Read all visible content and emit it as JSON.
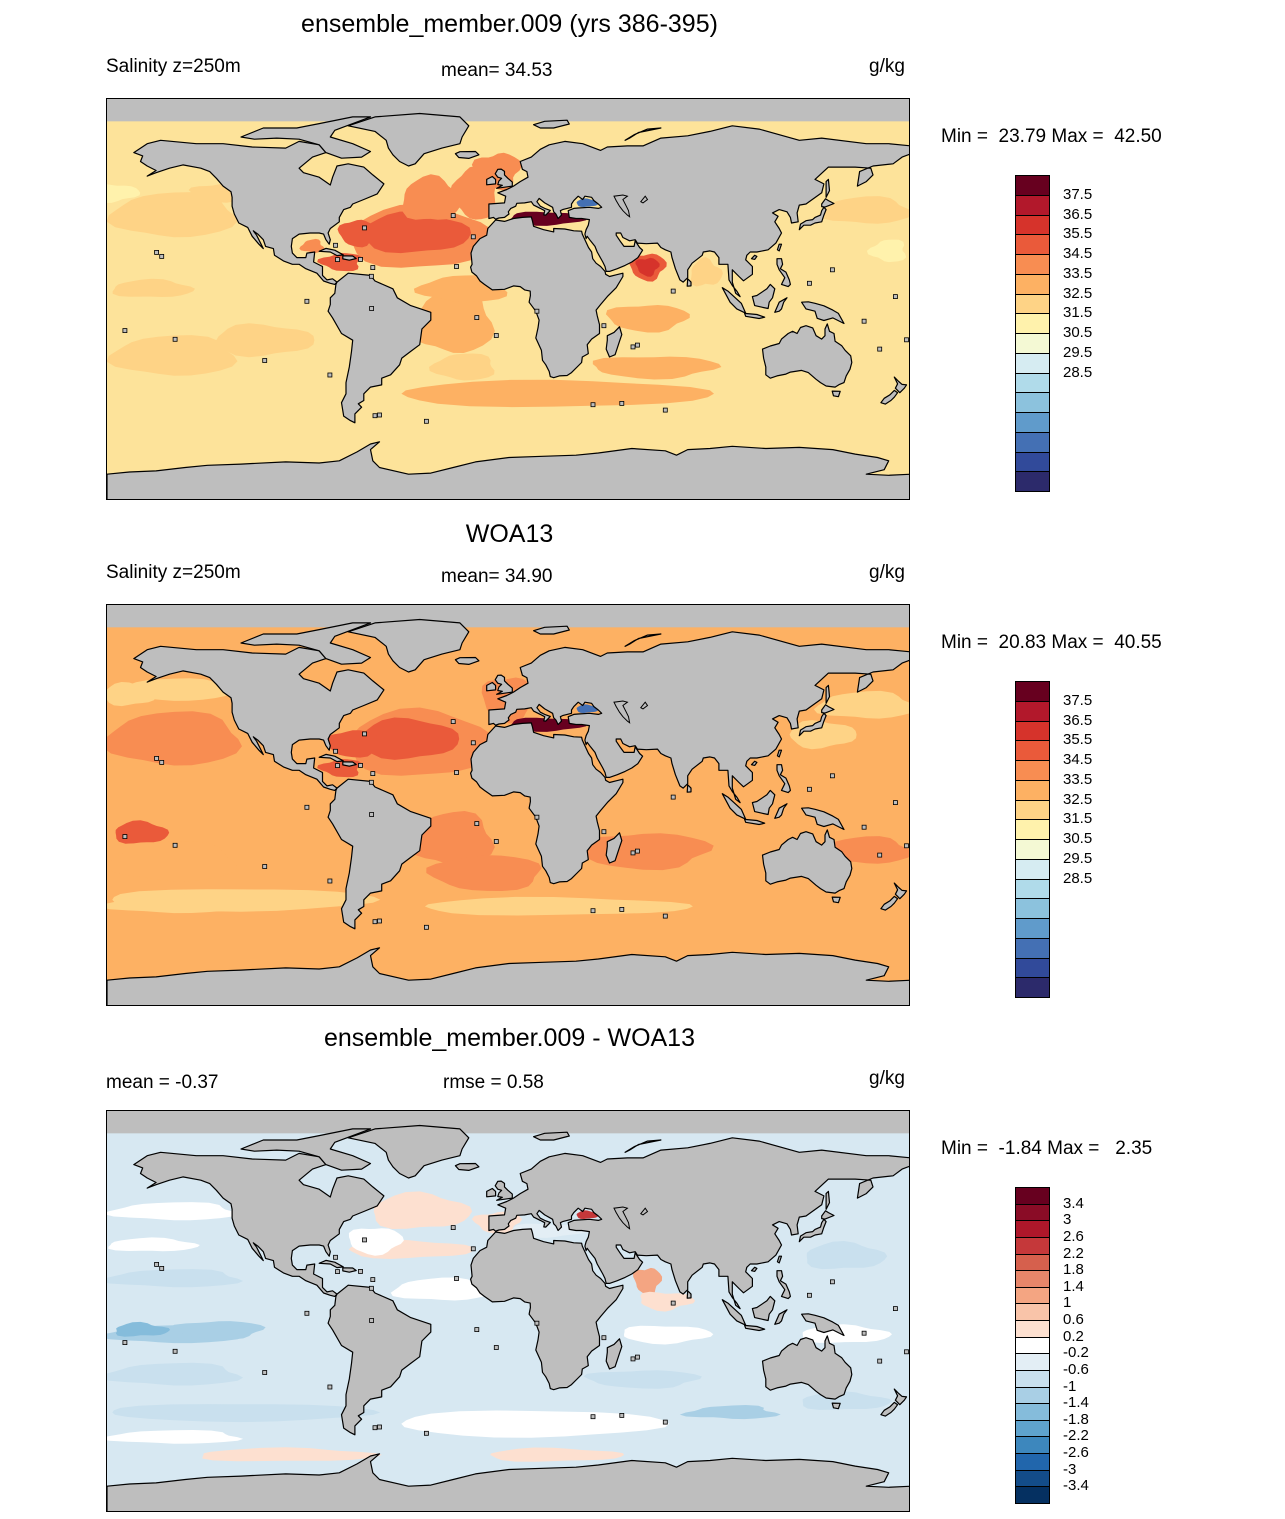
{
  "land_color": "#bebebe",
  "panels": [
    {
      "title": "ensemble_member.009 (yrs 386-395)",
      "left_label": "Salinity z=250m",
      "center_label": "mean=  34.53",
      "units": "g/kg",
      "minmax": "Min =  23.79 Max =  42.50",
      "ocean_base": "#fde39a",
      "levels": [
        "37.5",
        "36.5",
        "35.5",
        "34.5",
        "33.5",
        "32.5",
        "31.5",
        "30.5",
        "29.5",
        "28.5"
      ],
      "colors": [
        "#67001f",
        "#b2182b",
        "#d6332b",
        "#ea5a3a",
        "#f88d52",
        "#fdb163",
        "#fed386",
        "#fff2ac",
        "#f4f9d4",
        "#d6ecf2",
        "#b0dbea",
        "#8cc2dd",
        "#609bcb",
        "#4470b4",
        "#314a9a",
        "#2c2a6b"
      ]
    },
    {
      "title": "WOA13",
      "left_label": "Salinity z=250m",
      "center_label": "mean=  34.90",
      "units": "g/kg",
      "minmax": "Min =  20.83 Max =  40.55",
      "ocean_base": "#fdb163",
      "levels": [
        "37.5",
        "36.5",
        "35.5",
        "34.5",
        "33.5",
        "32.5",
        "31.5",
        "30.5",
        "29.5",
        "28.5"
      ],
      "colors": [
        "#67001f",
        "#b2182b",
        "#d6332b",
        "#ea5a3a",
        "#f88d52",
        "#fdb163",
        "#fed386",
        "#fff2ac",
        "#f4f9d4",
        "#d6ecf2",
        "#b0dbea",
        "#8cc2dd",
        "#609bcb",
        "#4470b4",
        "#314a9a",
        "#2c2a6b"
      ]
    },
    {
      "title": "ensemble_member.009 - WOA13",
      "left_label": "mean =  -0.37",
      "center_label": "rmse =   0.58",
      "units": "g/kg",
      "minmax": "Min =  -1.84 Max =   2.35",
      "ocean_base": "#d7e8f2",
      "levels": [
        "3.4",
        "3",
        "2.6",
        "2.2",
        "1.8",
        "1.4",
        "1",
        "0.6",
        "0.2",
        "-0.2",
        "-0.6",
        "-1",
        "-1.4",
        "-1.8",
        "-2.2",
        "-2.6",
        "-3",
        "-3.4"
      ],
      "colors": [
        "#67001f",
        "#8a0c26",
        "#ae172a",
        "#c5383a",
        "#d6604d",
        "#e7866a",
        "#f4a582",
        "#f9c4a9",
        "#fde0d0",
        "#ffffff",
        "#e3eef5",
        "#c9e0ee",
        "#a9cfe5",
        "#85bcdb",
        "#5fa3cd",
        "#3d87bd",
        "#2166ac",
        "#134c89",
        "#053061"
      ]
    }
  ]
}
